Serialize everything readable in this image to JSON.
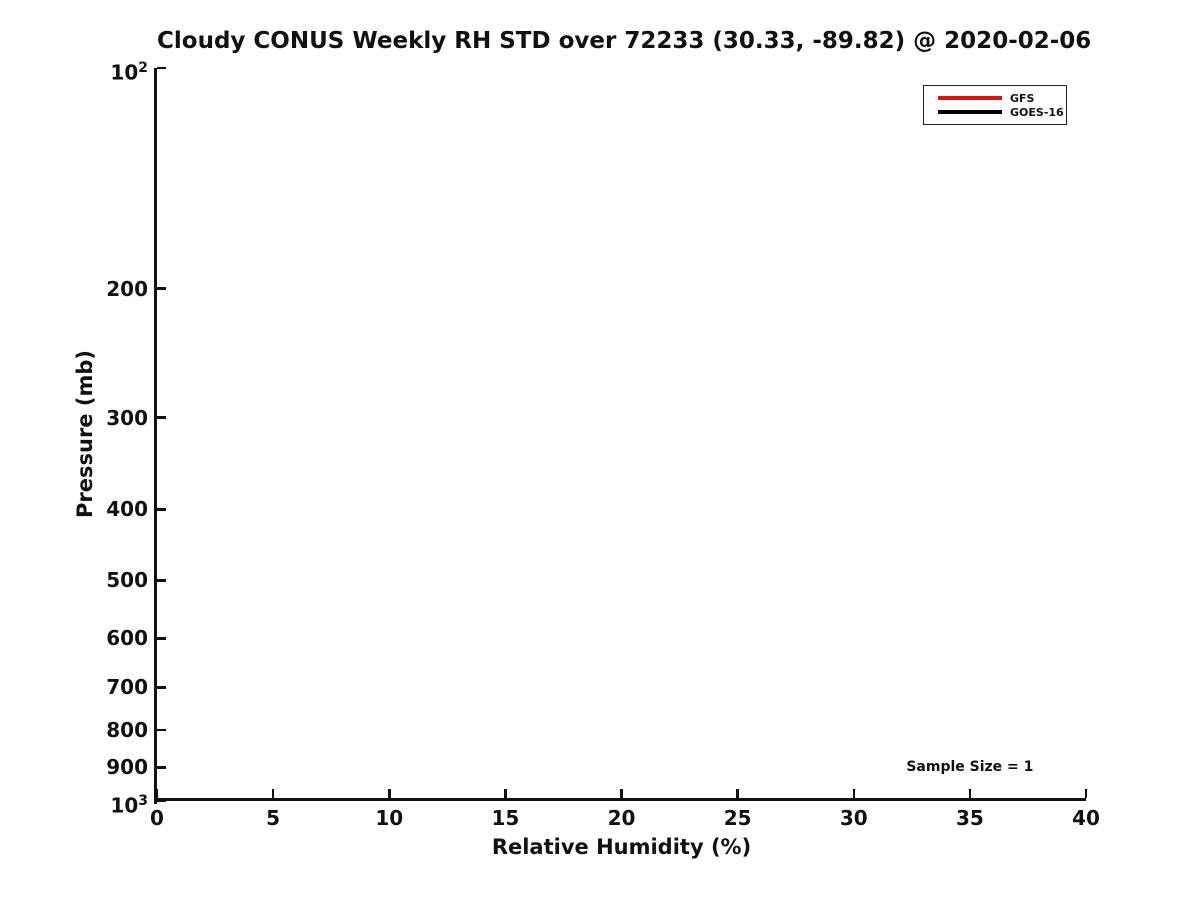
{
  "chart_data": {
    "type": "line",
    "title": "Cloudy CONUS Weekly RH STD over 72233 (30.33, -89.82) @ 2020-02-06",
    "xlabel": "Relative Humidity (%)",
    "ylabel": "Pressure (mb)",
    "xlim": [
      0,
      40
    ],
    "x_ticks": [
      0,
      5,
      10,
      15,
      20,
      25,
      30,
      35,
      40
    ],
    "x_tick_labels": [
      "0",
      "5",
      "10",
      "15",
      "20",
      "25",
      "30",
      "35",
      "40"
    ],
    "y_scale": "log",
    "y_inverted": true,
    "ylim": [
      100,
      1000
    ],
    "y_ticks": [
      100,
      200,
      300,
      400,
      500,
      600,
      700,
      800,
      900,
      1000
    ],
    "y_tick_labels": [
      "10^2",
      "200",
      "300",
      "400",
      "500",
      "600",
      "700",
      "800",
      "900",
      "10^3"
    ],
    "grid": false,
    "legend": {
      "position": "top-right",
      "entries": [
        {
          "name": "GFS",
          "color": "#dd1111"
        },
        {
          "name": "GOES-16",
          "color": "#000000"
        }
      ]
    },
    "series": [
      {
        "name": "GFS",
        "color": "#dd1111",
        "x": [],
        "y": [],
        "note": "no visible data points in plot area"
      },
      {
        "name": "GOES-16",
        "color": "#000000",
        "x": [],
        "y": [],
        "note": "no visible data points in plot area"
      }
    ],
    "annotations": [
      {
        "text": "Sample Size = 1",
        "x": 35,
        "y": 900
      }
    ]
  }
}
